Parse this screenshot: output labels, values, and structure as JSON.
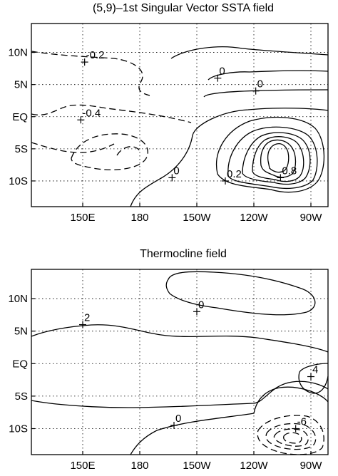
{
  "chart_data": [
    {
      "type": "contour",
      "title": "(5,9)–1st Singular Vector SSTA field",
      "x_ticks": [
        "150E",
        "180",
        "150W",
        "120W",
        "90W"
      ],
      "y_ticks": [
        "10N",
        "5N",
        "EQ",
        "5S",
        "10S"
      ],
      "grid": true,
      "contour_labels": [
        {
          "text": "-0.2",
          "lon": 151,
          "lat": 8.5
        },
        {
          "text": "0",
          "lon": 221,
          "lat": 6
        },
        {
          "text": "0",
          "lon": 241,
          "lat": 4
        },
        {
          "text": "-0.4",
          "lon": 149,
          "lat": -0.5
        },
        {
          "text": "0",
          "lon": 197,
          "lat": -9.5
        },
        {
          "text": "0.2",
          "lon": 225,
          "lat": -10
        },
        {
          "text": "0.8",
          "lon": 254,
          "lat": -9.5
        }
      ]
    },
    {
      "type": "contour",
      "title": "Thermocline field",
      "x_ticks": [
        "150E",
        "180",
        "150W",
        "120W",
        "90W"
      ],
      "y_ticks": [
        "10N",
        "5N",
        "EQ",
        "5S",
        "10S"
      ],
      "grid": true,
      "contour_labels": [
        {
          "text": "0",
          "lon": 210,
          "lat": 8
        },
        {
          "text": "2",
          "lon": 150,
          "lat": 6
        },
        {
          "text": "4",
          "lon": 270,
          "lat": -2
        },
        {
          "text": "0",
          "lon": 198,
          "lat": -9.5
        },
        {
          "text": "-6",
          "lon": 262,
          "lat": -10
        }
      ]
    }
  ]
}
